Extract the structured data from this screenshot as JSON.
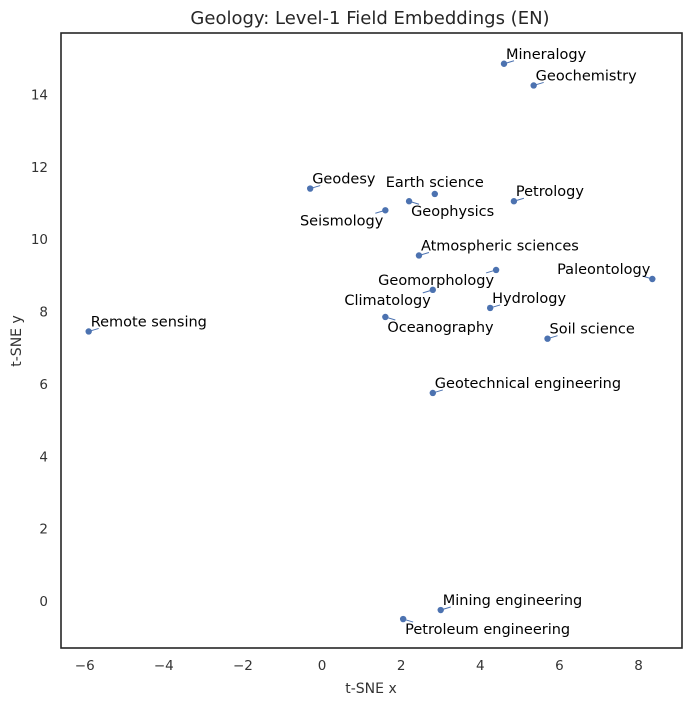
{
  "chart_data": {
    "type": "scatter",
    "title": "Geology: Level-1 Field Embeddings (EN)",
    "xlabel": "t-SNE x",
    "ylabel": "t-SNE y",
    "xlim": [
      -6.6,
      9.1
    ],
    "ylim": [
      -1.3,
      15.7
    ],
    "xticks": [
      -6,
      -4,
      -2,
      0,
      2,
      4,
      6,
      8
    ],
    "yticks": [
      0,
      2,
      4,
      6,
      8,
      10,
      12,
      14
    ],
    "xtick_labels": [
      "−6",
      "−4",
      "−2",
      "0",
      "2",
      "4",
      "6",
      "8"
    ],
    "ytick_labels": [
      "0",
      "2",
      "4",
      "6",
      "8",
      "10",
      "12",
      "14"
    ],
    "grid": false,
    "legend": false,
    "points": [
      {
        "label": "Mineralogy",
        "x": 4.6,
        "y": 14.85,
        "label_pos": "upper-right"
      },
      {
        "label": "Geochemistry",
        "x": 5.35,
        "y": 14.25,
        "label_pos": "upper-right"
      },
      {
        "label": "Geodesy",
        "x": -0.3,
        "y": 11.4,
        "label_pos": "upper-right"
      },
      {
        "label": "Earth science",
        "x": 2.85,
        "y": 11.25,
        "label_pos": "above"
      },
      {
        "label": "Petrology",
        "x": 4.85,
        "y": 11.05,
        "label_pos": "upper-right"
      },
      {
        "label": "Geophysics",
        "x": 2.2,
        "y": 11.05,
        "label_pos": "lower-right"
      },
      {
        "label": "Seismology",
        "x": 1.6,
        "y": 10.8,
        "label_pos": "lower-left"
      },
      {
        "label": "Atmospheric sciences",
        "x": 2.45,
        "y": 9.55,
        "label_pos": "upper-right"
      },
      {
        "label": "Geomorphology",
        "x": 4.4,
        "y": 9.15,
        "label_pos": "lower-left"
      },
      {
        "label": "Paleontology",
        "x": 8.35,
        "y": 8.9,
        "label_pos": "upper-left"
      },
      {
        "label": "Climatology",
        "x": 2.8,
        "y": 8.6,
        "label_pos": "lower-left"
      },
      {
        "label": "Hydrology",
        "x": 4.25,
        "y": 8.1,
        "label_pos": "upper-right"
      },
      {
        "label": "Oceanography",
        "x": 1.6,
        "y": 7.85,
        "label_pos": "lower-right"
      },
      {
        "label": "Remote sensing",
        "x": -5.9,
        "y": 7.45,
        "label_pos": "upper-right"
      },
      {
        "label": "Soil science",
        "x": 5.7,
        "y": 7.25,
        "label_pos": "upper-right"
      },
      {
        "label": "Geotechnical engineering",
        "x": 2.8,
        "y": 5.75,
        "label_pos": "upper-right"
      },
      {
        "label": "Mining engineering",
        "x": 3.0,
        "y": -0.25,
        "label_pos": "upper-right"
      },
      {
        "label": "Petroleum engineering",
        "x": 2.05,
        "y": -0.5,
        "label_pos": "lower-right"
      }
    ],
    "colors": {
      "point": "#4c72b0",
      "text": "#000000",
      "axis": "#262626"
    }
  }
}
